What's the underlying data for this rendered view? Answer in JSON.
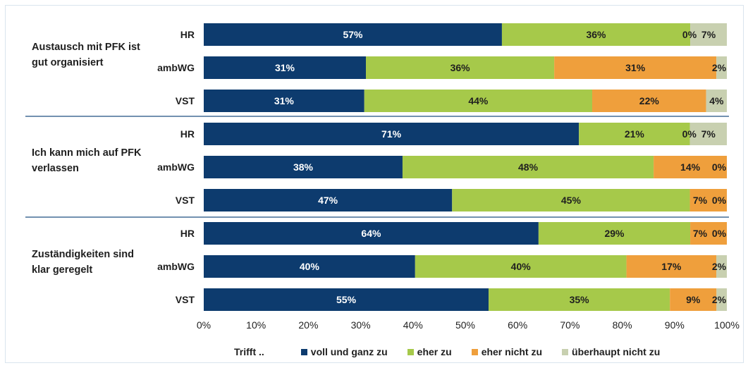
{
  "chart_data": {
    "type": "bar",
    "orientation": "horizontal",
    "stacked": true,
    "percent_scale": true,
    "groups": [
      {
        "label": "Austausch mit PFK ist gut organisiert",
        "rows": [
          {
            "category": "HR",
            "values": [
              57,
              36,
              0,
              7
            ],
            "labels": [
              "57%",
              "36%",
              "0%",
              "7%"
            ]
          },
          {
            "category": "ambWG",
            "values": [
              31,
              36,
              31,
              2
            ],
            "labels": [
              "31%",
              "36%",
              "31%",
              "2%"
            ]
          },
          {
            "category": "VST",
            "values": [
              31,
              44,
              22,
              4
            ],
            "labels": [
              "31%",
              "44%",
              "22%",
              "4%"
            ]
          }
        ]
      },
      {
        "label": "Ich kann mich auf PFK verlassen",
        "rows": [
          {
            "category": "HR",
            "values": [
              71,
              21,
              0,
              7
            ],
            "labels": [
              "71%",
              "21%",
              "0%",
              "7%"
            ]
          },
          {
            "category": "ambWG",
            "values": [
              38,
              48,
              14,
              0
            ],
            "labels": [
              "38%",
              "48%",
              "14%",
              "0%"
            ]
          },
          {
            "category": "VST",
            "values": [
              47,
              45,
              7,
              0
            ],
            "labels": [
              "47%",
              "45%",
              "7%",
              "0%"
            ]
          }
        ]
      },
      {
        "label": "Zuständigkeiten sind klar geregelt",
        "rows": [
          {
            "category": "HR",
            "values": [
              64,
              29,
              7,
              0
            ],
            "labels": [
              "64%",
              "29%",
              "7%",
              "0%"
            ]
          },
          {
            "category": "ambWG",
            "values": [
              40,
              40,
              17,
              2
            ],
            "labels": [
              "40%",
              "40%",
              "17%",
              "2%"
            ]
          },
          {
            "category": "VST",
            "values": [
              55,
              35,
              9,
              2
            ],
            "labels": [
              "55%",
              "35%",
              "9%",
              "2%"
            ]
          }
        ]
      }
    ],
    "series": [
      {
        "name": "voll und ganz zu",
        "color": "#0d3b6e"
      },
      {
        "name": "eher zu",
        "color": "#a6c94a"
      },
      {
        "name": "eher nicht zu",
        "color": "#ef9f3c"
      },
      {
        "name": "überhaupt nicht zu",
        "color": "#c8d0b0"
      }
    ],
    "x_ticks": [
      "0%",
      "10%",
      "20%",
      "30%",
      "40%",
      "50%",
      "60%",
      "70%",
      "80%",
      "90%",
      "100%"
    ],
    "xlim": [
      0,
      100
    ],
    "grid": false,
    "legend_title": "Trifft ..",
    "legend_position": "bottom"
  }
}
